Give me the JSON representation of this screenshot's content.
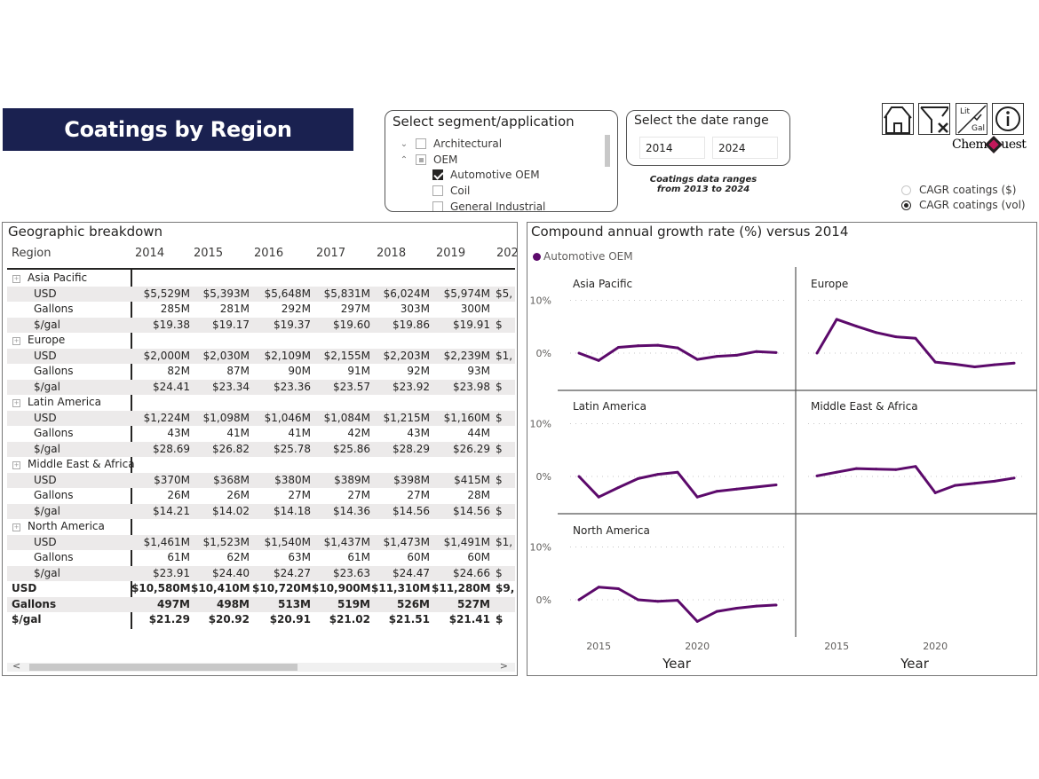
{
  "title": "Coatings by Region",
  "segment_slicer": {
    "title": "Select segment/application",
    "items": [
      {
        "label": "Architectural",
        "level": 0,
        "expander": "chevron-down",
        "state": "unchecked"
      },
      {
        "label": "OEM",
        "level": 0,
        "expander": "chevron-up",
        "state": "partial"
      },
      {
        "label": "Automotive OEM",
        "level": 1,
        "state": "checked"
      },
      {
        "label": "Coil",
        "level": 1,
        "state": "unchecked"
      },
      {
        "label": "General Industrial",
        "level": 1,
        "state": "unchecked"
      }
    ]
  },
  "date_slicer": {
    "title": "Select the date range",
    "start": "2014",
    "end": "2024",
    "note": "Coatings data ranges from 2013 to 2024"
  },
  "toolbar": {
    "buttons": [
      {
        "name": "home",
        "icon": "home-icon"
      },
      {
        "name": "clear-filters",
        "icon": "clear-filter-icon"
      },
      {
        "name": "lit-gal-toggle",
        "icon": "lit-gal-icon",
        "top": "Lit",
        "bottom": "Gal"
      },
      {
        "name": "info",
        "icon": "info-icon"
      }
    ],
    "logo_left": "Chem",
    "logo_right": "uest"
  },
  "cagr_toggle": {
    "options": [
      {
        "label": "CAGR coatings ($)",
        "selected": false
      },
      {
        "label": "CAGR coatings (vol)",
        "selected": true
      }
    ]
  },
  "geo_table": {
    "title": "Geographic breakdown",
    "row_header": "Region",
    "years": [
      "2014",
      "2015",
      "2016",
      "2017",
      "2018",
      "2019",
      "202"
    ],
    "regions": [
      {
        "name": "Asia Pacific",
        "rows": [
          {
            "label": "USD",
            "values": [
              "$5,529M",
              "$5,393M",
              "$5,648M",
              "$5,831M",
              "$6,024M",
              "$5,974M",
              "$5,"
            ]
          },
          {
            "label": "Gallons",
            "values": [
              "285M",
              "281M",
              "292M",
              "297M",
              "303M",
              "300M",
              ""
            ]
          },
          {
            "label": "$/gal",
            "values": [
              "$19.38",
              "$19.17",
              "$19.37",
              "$19.60",
              "$19.86",
              "$19.91",
              "$"
            ]
          }
        ]
      },
      {
        "name": "Europe",
        "rows": [
          {
            "label": "USD",
            "values": [
              "$2,000M",
              "$2,030M",
              "$2,109M",
              "$2,155M",
              "$2,203M",
              "$2,239M",
              "$1,"
            ]
          },
          {
            "label": "Gallons",
            "values": [
              "82M",
              "87M",
              "90M",
              "91M",
              "92M",
              "93M",
              ""
            ]
          },
          {
            "label": "$/gal",
            "values": [
              "$24.41",
              "$23.34",
              "$23.36",
              "$23.57",
              "$23.92",
              "$23.98",
              "$"
            ]
          }
        ]
      },
      {
        "name": "Latin America",
        "rows": [
          {
            "label": "USD",
            "values": [
              "$1,224M",
              "$1,098M",
              "$1,046M",
              "$1,084M",
              "$1,215M",
              "$1,160M",
              "$"
            ]
          },
          {
            "label": "Gallons",
            "values": [
              "43M",
              "41M",
              "41M",
              "42M",
              "43M",
              "44M",
              ""
            ]
          },
          {
            "label": "$/gal",
            "values": [
              "$28.69",
              "$26.82",
              "$25.78",
              "$25.86",
              "$28.29",
              "$26.29",
              "$"
            ]
          }
        ]
      },
      {
        "name": "Middle East & Africa",
        "rows": [
          {
            "label": "USD",
            "values": [
              "$370M",
              "$368M",
              "$380M",
              "$389M",
              "$398M",
              "$415M",
              "$"
            ]
          },
          {
            "label": "Gallons",
            "values": [
              "26M",
              "26M",
              "27M",
              "27M",
              "27M",
              "28M",
              ""
            ]
          },
          {
            "label": "$/gal",
            "values": [
              "$14.21",
              "$14.02",
              "$14.18",
              "$14.36",
              "$14.56",
              "$14.56",
              "$"
            ]
          }
        ]
      },
      {
        "name": "North America",
        "rows": [
          {
            "label": "USD",
            "values": [
              "$1,461M",
              "$1,523M",
              "$1,540M",
              "$1,437M",
              "$1,473M",
              "$1,491M",
              "$1,"
            ]
          },
          {
            "label": "Gallons",
            "values": [
              "61M",
              "62M",
              "63M",
              "61M",
              "60M",
              "60M",
              ""
            ]
          },
          {
            "label": "$/gal",
            "values": [
              "$23.91",
              "$24.40",
              "$24.27",
              "$23.63",
              "$24.47",
              "$24.66",
              "$"
            ]
          }
        ]
      }
    ],
    "totals": [
      {
        "label": "USD",
        "values": [
          "$10,580M",
          "$10,410M",
          "$10,720M",
          "$10,900M",
          "$11,310M",
          "$11,280M",
          "$9,"
        ]
      },
      {
        "label": "Gallons",
        "values": [
          "497M",
          "498M",
          "513M",
          "519M",
          "526M",
          "527M",
          ""
        ]
      },
      {
        "label": "$/gal",
        "values": [
          "$21.29",
          "$20.92",
          "$20.91",
          "$21.02",
          "$21.51",
          "$21.41",
          "$"
        ]
      }
    ],
    "scroll_left": "<",
    "scroll_right": ">"
  },
  "chart_data": {
    "type": "line",
    "title": "Compound annual growth rate (%) versus 2014",
    "legend": [
      {
        "name": "Automotive OEM",
        "color": "#5c0a6b"
      }
    ],
    "xlabel": "Year",
    "ylabel": "",
    "x": [
      2014,
      2015,
      2016,
      2017,
      2018,
      2019,
      2020,
      2021,
      2022,
      2023,
      2024
    ],
    "x_ticks": [
      "2015",
      "2020"
    ],
    "y_ticks": [
      "0%",
      "10%"
    ],
    "ylim": [
      -6,
      12
    ],
    "grid": true,
    "legend_position": "top-left",
    "panels": [
      {
        "name": "Asia Pacific",
        "values": [
          0,
          -1.4,
          1.1,
          1.4,
          1.5,
          1.0,
          -1.2,
          -0.6,
          -0.4,
          0.3,
          0.1
        ]
      },
      {
        "name": "Europe",
        "values": [
          0,
          6.4,
          5.1,
          3.9,
          3.1,
          2.8,
          -1.7,
          -2.1,
          -2.6,
          -2.2,
          -1.9
        ]
      },
      {
        "name": "Latin America",
        "values": [
          0,
          -3.9,
          -2.1,
          -0.4,
          0.4,
          0.8,
          -3.9,
          -2.8,
          -2.4,
          -2.0,
          -1.6
        ]
      },
      {
        "name": "Middle East & Africa",
        "values": [
          0.1,
          0.8,
          1.5,
          1.4,
          1.3,
          1.9,
          -3.1,
          -1.7,
          -1.3,
          -0.9,
          -0.3
        ]
      },
      {
        "name": "North America",
        "values": [
          0,
          2.4,
          2.1,
          0,
          -0.3,
          -0.1,
          -4.1,
          -2.2,
          -1.6,
          -1.2,
          -1.0
        ]
      }
    ]
  }
}
